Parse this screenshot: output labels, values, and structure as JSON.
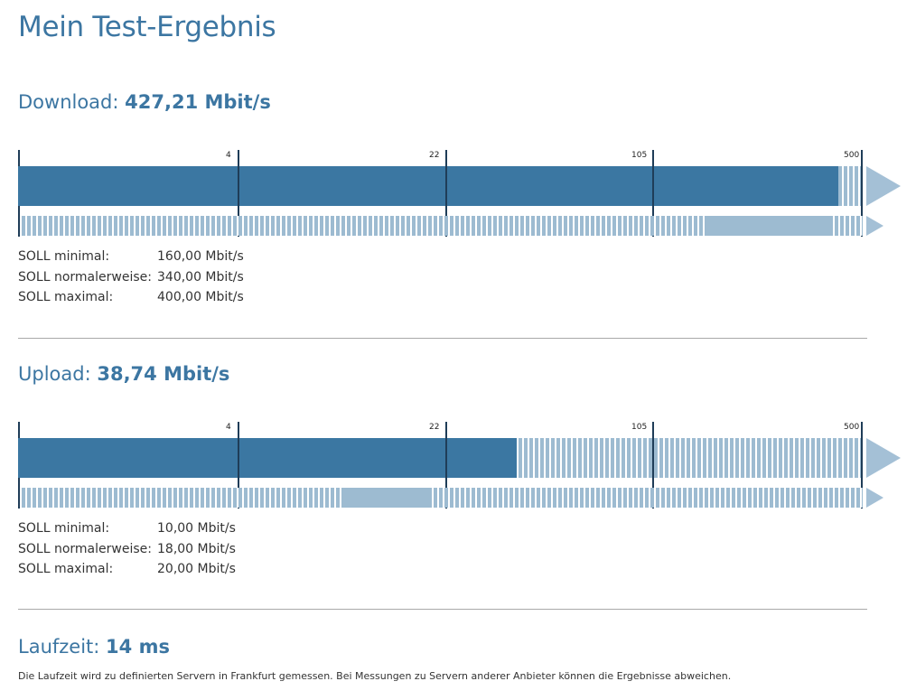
{
  "page": {
    "title": "Mein Test-Ergebnis"
  },
  "scale_ticks": [
    "4",
    "22",
    "105",
    "500"
  ],
  "colors": {
    "heading": "#3c76a2",
    "measured_bar": "#3b77a2",
    "hatch_and_target_range": "#9dbbd1",
    "tick_lines": "#1f3d58"
  },
  "download": {
    "label": "Download:",
    "value": "427,21 Mbit/s",
    "measured_mbps": 427.21,
    "target_range_mbps": [
      160,
      400
    ],
    "soll": [
      {
        "label": "SOLL minimal:",
        "value": "160,00 Mbit/s"
      },
      {
        "label": "SOLL normalerweise:",
        "value": "340,00 Mbit/s"
      },
      {
        "label": "SOLL maximal:",
        "value": "400,00 Mbit/s"
      }
    ]
  },
  "upload": {
    "label": "Upload:",
    "value": "38,74 Mbit/s",
    "measured_mbps": 38.74,
    "target_range_mbps": [
      10,
      20
    ],
    "soll": [
      {
        "label": "SOLL minimal:",
        "value": "10,00 Mbit/s"
      },
      {
        "label": "SOLL normalerweise:",
        "value": "18,00 Mbit/s"
      },
      {
        "label": "SOLL maximal:",
        "value": "20,00 Mbit/s"
      }
    ]
  },
  "latency": {
    "label": "Laufzeit:",
    "value": "14 ms",
    "note": "Die Laufzeit wird zu definierten Servern in Frankfurt gemessen. Bei Messungen zu Servern anderer Anbieter können die Ergebnisse abweichen."
  }
}
